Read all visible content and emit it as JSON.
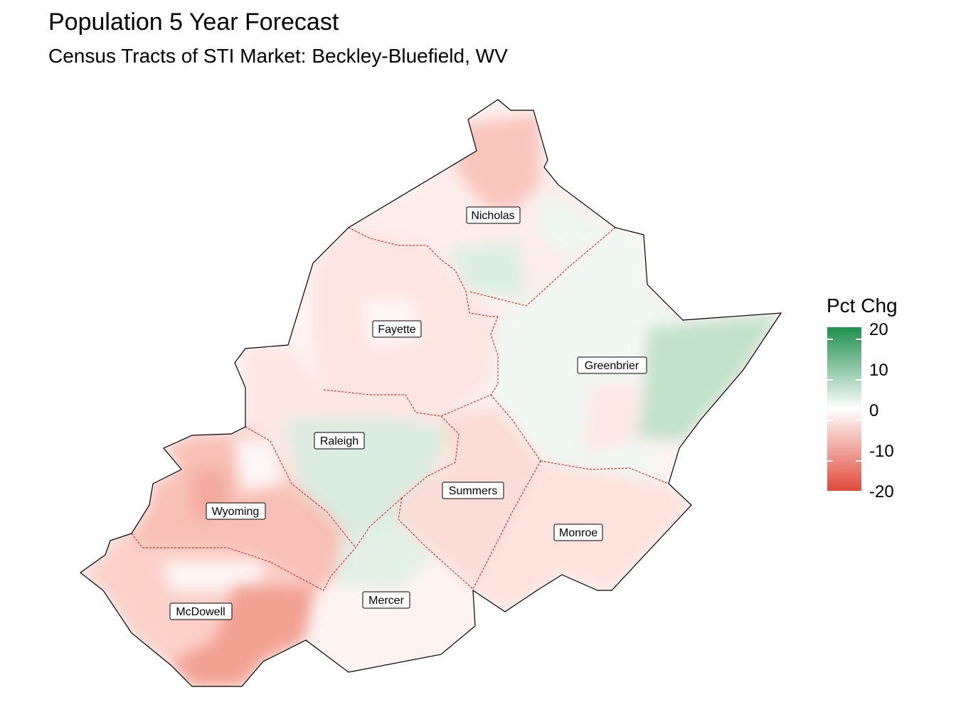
{
  "title": "Population 5 Year Forecast",
  "subtitle": "Census Tracts of STI Market: Beckley-Bluefield, WV",
  "legend": {
    "title": "Pct Chg",
    "min": -20,
    "max": 20,
    "ticks": [
      "20",
      "10",
      "0",
      "-10",
      "-20"
    ],
    "colors": {
      "low": "#e04a3a",
      "mid": "#ffffff",
      "high": "#1e8f4e"
    }
  },
  "counties": [
    {
      "name": "Nicholas",
      "pct_chg": -3
    },
    {
      "name": "Fayette",
      "pct_chg": -4
    },
    {
      "name": "Greenbrier",
      "pct_chg": 2
    },
    {
      "name": "Raleigh",
      "pct_chg": 2
    },
    {
      "name": "Summers",
      "pct_chg": -6
    },
    {
      "name": "Wyoming",
      "pct_chg": -8
    },
    {
      "name": "Monroe",
      "pct_chg": -6
    },
    {
      "name": "McDowell",
      "pct_chg": -10
    },
    {
      "name": "Mercer",
      "pct_chg": 0
    }
  ],
  "county_border_color": "#e0302a",
  "outline_color": "#000000"
}
